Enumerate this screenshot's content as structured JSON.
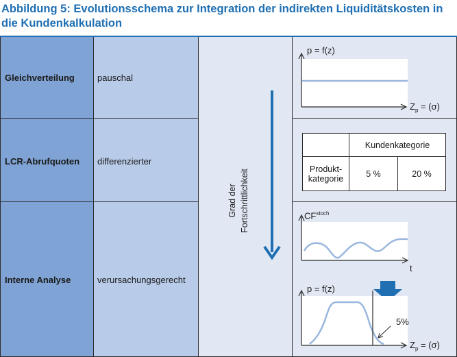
{
  "title": "Abbildung 5: Evolutionsschema zur Integration der indirekten Liquiditätskosten in die Kundenkalkulation",
  "rows": [
    {
      "name": "Gleichverteilung",
      "description": "pauschal"
    },
    {
      "name": "LCR-Abrufquoten",
      "description": "differenzierter"
    },
    {
      "name": "Interne Analyse",
      "description": "verursachungsgerecht"
    }
  ],
  "progress_label": "Grad der Fortschrittlichkeit",
  "chart1": {
    "ylabel": "p = f(z)",
    "xlabel_main": "Z",
    "xlabel_sub": "p",
    "xlabel_rest": " = (σ)"
  },
  "table": {
    "header": "Kundenkategorie",
    "row_label_line1": "Produkt-",
    "row_label_line2": "kategorie",
    "values": [
      "5 %",
      "20 %"
    ]
  },
  "chart2": {
    "ylabel_main": "CF",
    "ylabel_sup": "stoch",
    "xlabel": "t"
  },
  "chart3": {
    "ylabel": "p = f(z)",
    "xlabel_main": "Z",
    "xlabel_sub": "p",
    "xlabel_rest": " = (σ)",
    "annotation": "5%"
  },
  "colors": {
    "title": "#1f6fb2",
    "accent": "#1f6fb2",
    "col_dark": "#7fa3d4",
    "col_mid": "#b8cbe8",
    "col_light": "#e1e8f4",
    "curve": "#9ab7dd"
  }
}
